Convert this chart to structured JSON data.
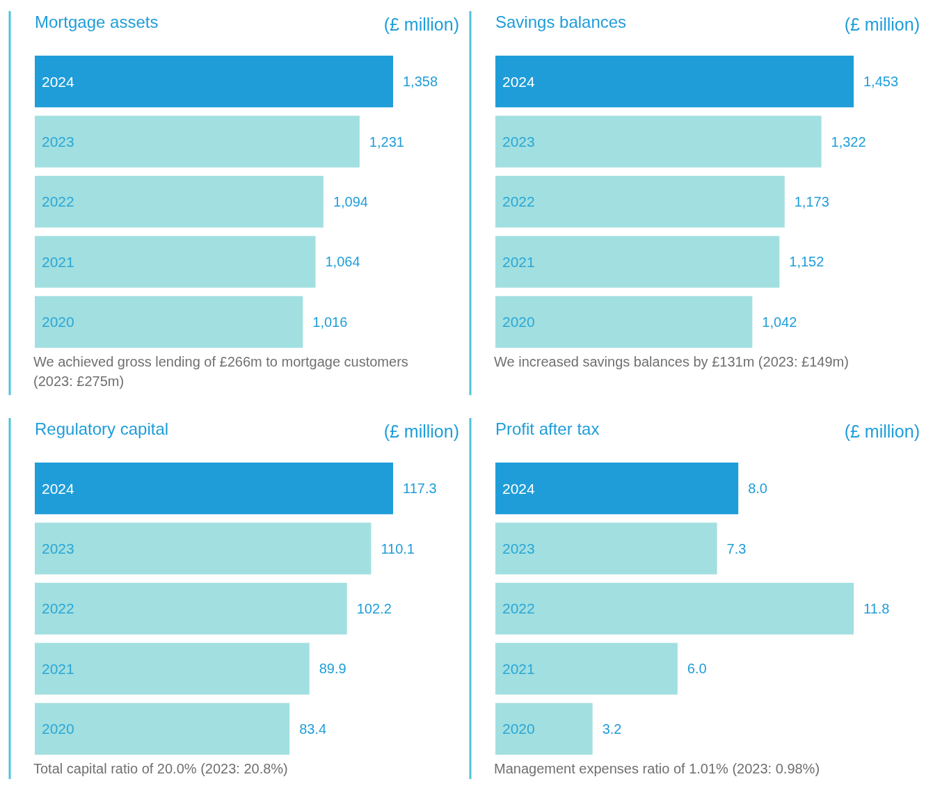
{
  "chart_data": [
    {
      "type": "bar",
      "orientation": "horizontal",
      "title": "Mortgage assets",
      "subtitle": "(£ million)",
      "categories": [
        "2024",
        "2023",
        "2022",
        "2021",
        "2020"
      ],
      "values": [
        1358,
        1231,
        1094,
        1064,
        1016
      ],
      "value_labels": [
        "1,358",
        "1,231",
        "1,094",
        "1,064",
        "1,016"
      ],
      "colors": [
        "#1f9dd9",
        "#a2dfe0",
        "#a2dfe0",
        "#a2dfe0",
        "#a2dfe0"
      ],
      "annotations": [
        "We achieved gross lending of £266m to mortgage customers (2023: £275m)"
      ]
    },
    {
      "type": "bar",
      "orientation": "horizontal",
      "title": "Savings balances",
      "subtitle": "(£ million)",
      "categories": [
        "2024",
        "2023",
        "2022",
        "2021",
        "2020"
      ],
      "values": [
        1453,
        1322,
        1173,
        1152,
        1042
      ],
      "value_labels": [
        "1,453",
        "1,322",
        "1,173",
        "1,152",
        "1,042"
      ],
      "colors": [
        "#1f9dd9",
        "#a2dfe0",
        "#a2dfe0",
        "#a2dfe0",
        "#a2dfe0"
      ],
      "annotations": [
        "We increased savings balances by £131m (2023: £149m)"
      ]
    },
    {
      "type": "bar",
      "orientation": "horizontal",
      "title": "Regulatory capital",
      "subtitle": "(£ million)",
      "categories": [
        "2024",
        "2023",
        "2022",
        "2021",
        "2020"
      ],
      "values": [
        117.3,
        110.1,
        102.2,
        89.9,
        83.4
      ],
      "value_labels": [
        "117.3",
        "110.1",
        "102.2",
        "89.9",
        "83.4"
      ],
      "colors": [
        "#1f9dd9",
        "#a2dfe0",
        "#a2dfe0",
        "#a2dfe0",
        "#a2dfe0"
      ],
      "annotations": [
        "Total capital ratio of 20.0% (2023: 20.8%)"
      ]
    },
    {
      "type": "bar",
      "orientation": "horizontal",
      "title": "Profit after tax",
      "subtitle": "(£ million)",
      "categories": [
        "2024",
        "2023",
        "2022",
        "2021",
        "2020"
      ],
      "values": [
        8.0,
        7.3,
        11.8,
        6.0,
        3.2
      ],
      "value_labels": [
        "8.0",
        "7.3",
        "11.8",
        "6.0",
        "3.2"
      ],
      "colors": [
        "#1f9dd9",
        "#a2dfe0",
        "#a2dfe0",
        "#a2dfe0",
        "#a2dfe0"
      ],
      "annotations": [
        "Management expenses ratio of 1.01% (2023: 0.98%)"
      ]
    }
  ]
}
